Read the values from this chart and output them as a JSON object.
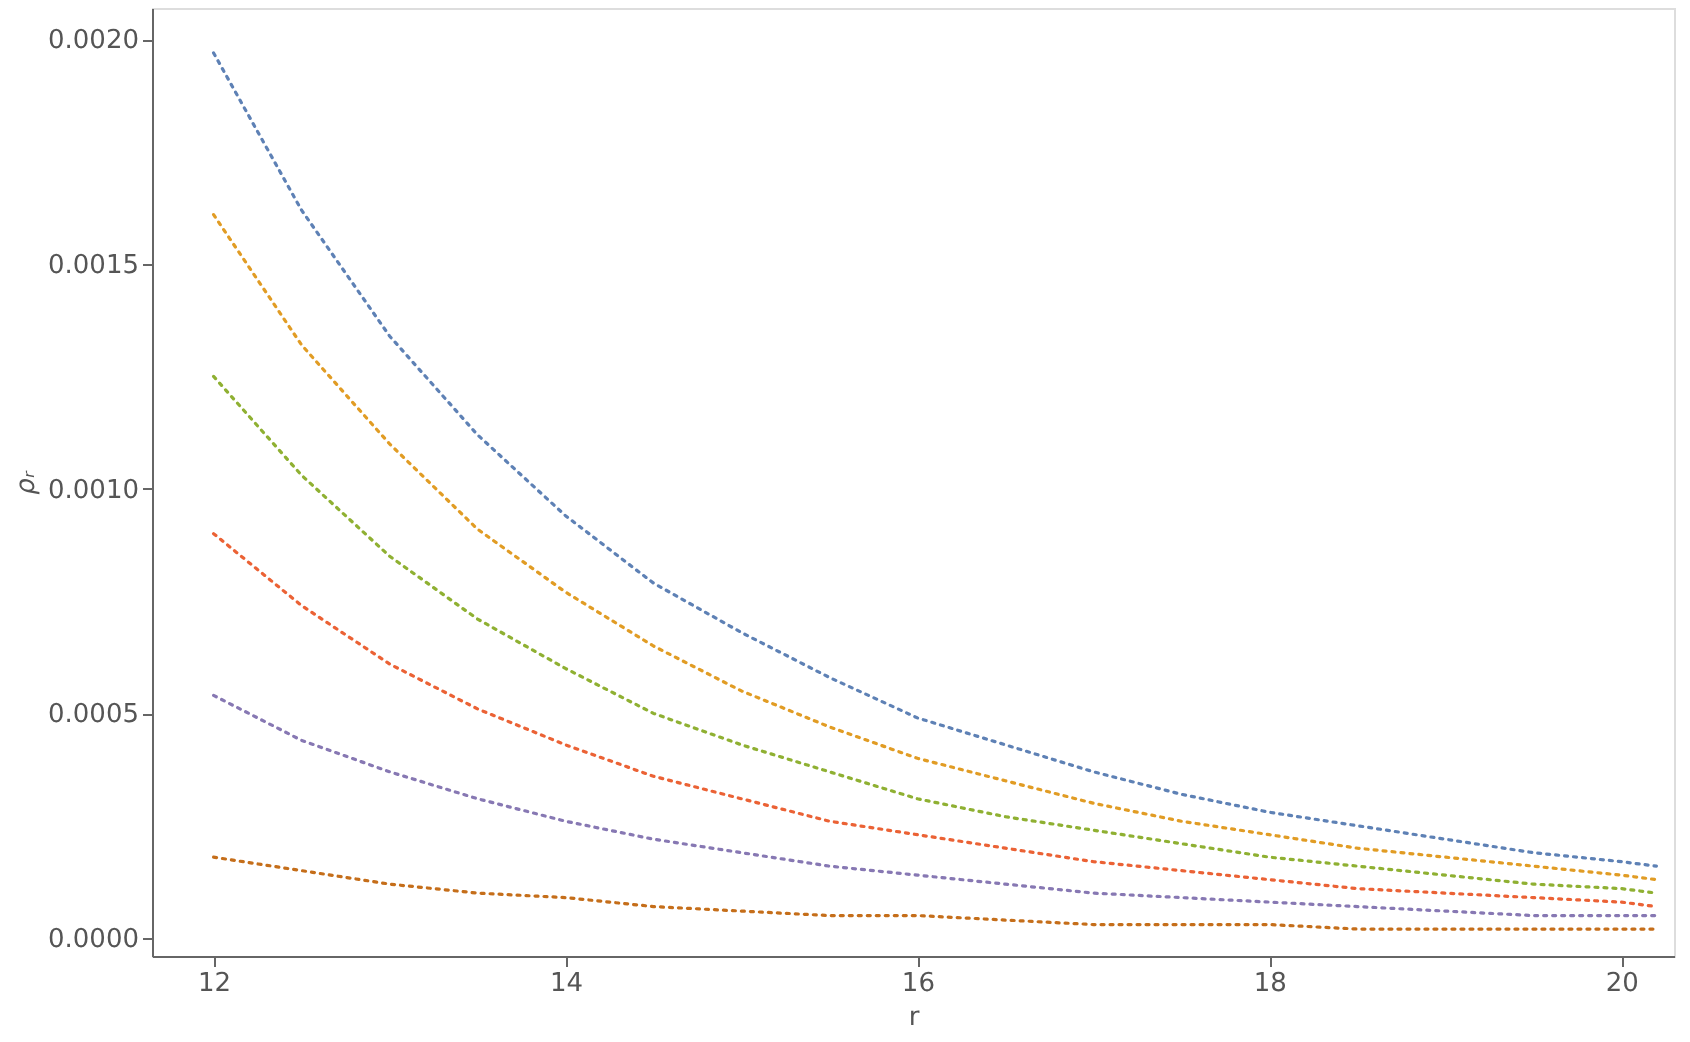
{
  "chart_data": {
    "type": "line",
    "xlabel": "r",
    "ylabel": "ρᵣ",
    "line_style": "dotted",
    "grid": false,
    "x": [
      12,
      12.5,
      13,
      13.5,
      14,
      14.5,
      15,
      15.5,
      16,
      16.5,
      17,
      17.5,
      18,
      18.5,
      19,
      19.5,
      20,
      20.2
    ],
    "xlim": [
      11.65,
      20.3
    ],
    "ylim": [
      -4e-05,
      0.00207
    ],
    "xticks": [
      12,
      14,
      16,
      18,
      20
    ],
    "yticks": [
      {
        "value": 0,
        "label": "0.0000"
      },
      {
        "value": 0.0005,
        "label": "0.0005"
      },
      {
        "value": 0.001,
        "label": "0.0010"
      },
      {
        "value": 0.0015,
        "label": "0.0015"
      },
      {
        "value": 0.002,
        "label": "0.0020"
      }
    ],
    "series": [
      {
        "color": "#5e81b5",
        "values": [
          0.00197,
          0.00162,
          0.00134,
          0.00112,
          0.00094,
          0.00079,
          0.00068,
          0.00058,
          0.00049,
          0.00043,
          0.00037,
          0.00032,
          0.00028,
          0.00025,
          0.00022,
          0.00019,
          0.00017,
          0.00016
        ]
      },
      {
        "color": "#e19c24",
        "values": [
          0.00161,
          0.00132,
          0.0011,
          0.00091,
          0.00077,
          0.00065,
          0.00055,
          0.00047,
          0.0004,
          0.00035,
          0.0003,
          0.00026,
          0.00023,
          0.0002,
          0.00018,
          0.00016,
          0.00014,
          0.00013
        ]
      },
      {
        "color": "#8fb032",
        "values": [
          0.00125,
          0.00103,
          0.00085,
          0.00071,
          0.0006,
          0.0005,
          0.00043,
          0.00037,
          0.00031,
          0.00027,
          0.00024,
          0.00021,
          0.00018,
          0.00016,
          0.00014,
          0.00012,
          0.00011,
          0.0001
        ]
      },
      {
        "color": "#eb6235",
        "values": [
          0.0009,
          0.00074,
          0.00061,
          0.00051,
          0.00043,
          0.00036,
          0.00031,
          0.00026,
          0.00023,
          0.0002,
          0.00017,
          0.00015,
          0.00013,
          0.00011,
          0.0001,
          9e-05,
          8e-05,
          7e-05
        ]
      },
      {
        "color": "#8778b3",
        "values": [
          0.00054,
          0.00044,
          0.00037,
          0.00031,
          0.00026,
          0.00022,
          0.00019,
          0.00016,
          0.00014,
          0.00012,
          0.0001,
          9e-05,
          8e-05,
          7e-05,
          6e-05,
          5e-05,
          5e-05,
          5e-05
        ]
      },
      {
        "color": "#c56e1a",
        "values": [
          0.00018,
          0.00015,
          0.00012,
          0.0001,
          9e-05,
          7e-05,
          6e-05,
          5e-05,
          5e-05,
          4e-05,
          3e-05,
          3e-05,
          3e-05,
          2e-05,
          2e-05,
          2e-05,
          2e-05,
          2e-05
        ]
      }
    ]
  }
}
